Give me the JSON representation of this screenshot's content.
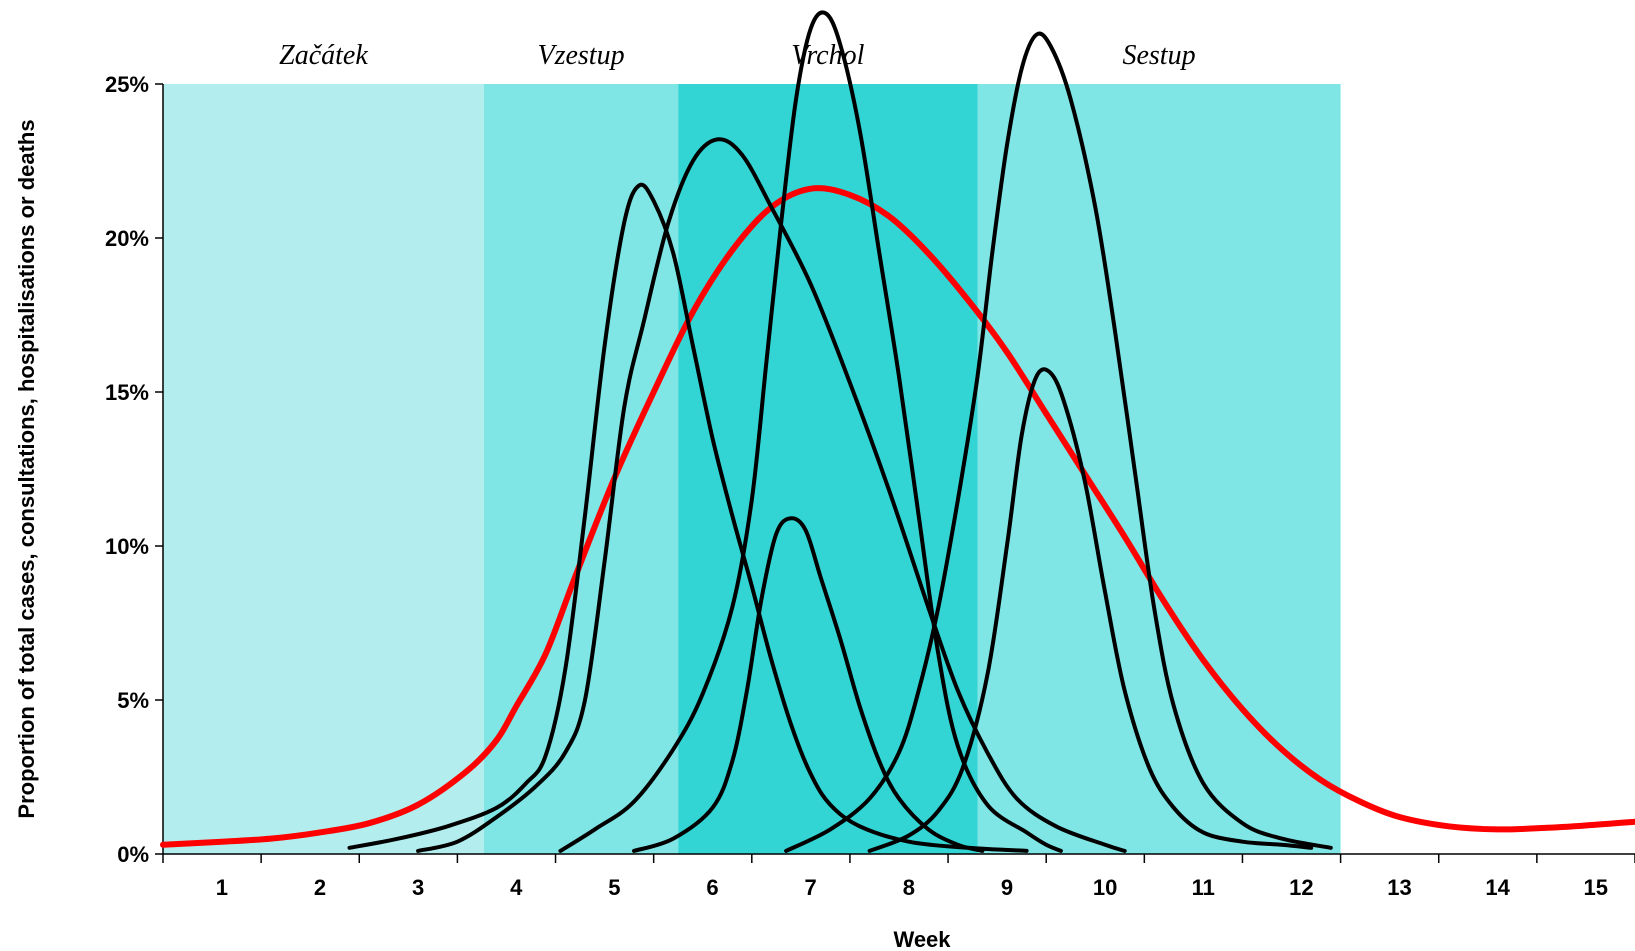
{
  "chart_data": {
    "type": "line",
    "xlabel": "Week",
    "ylabel": "Proportion of total cases, consultations, hospitalisations or deaths",
    "xlim": [
      0.4,
      15.4
    ],
    "ylim": [
      0,
      25
    ],
    "x_ticks": [
      "1",
      "2",
      "3",
      "4",
      "5",
      "6",
      "7",
      "8",
      "9",
      "10",
      "11",
      "12",
      "13",
      "14",
      "15"
    ],
    "y_ticks": [
      {
        "value": 0,
        "label": "0%"
      },
      {
        "value": 5,
        "label": "5%"
      },
      {
        "value": 10,
        "label": "10%"
      },
      {
        "value": 15,
        "label": "15%"
      },
      {
        "value": 20,
        "label": "20%"
      },
      {
        "value": 25,
        "label": "25%"
      }
    ],
    "phases": [
      {
        "label": "Začátek",
        "x_start": 0.4,
        "x_end": 3.67,
        "color": "#b3eded"
      },
      {
        "label": "Vzestup",
        "x_start": 3.67,
        "x_end": 5.65,
        "color": "#80e5e5"
      },
      {
        "label": "Vrchol",
        "x_start": 5.65,
        "x_end": 8.7,
        "color": "#33d4d4"
      },
      {
        "label": "Sestup",
        "x_start": 8.7,
        "x_end": 12.4,
        "color": "#80e5e5"
      }
    ],
    "series": [
      {
        "color": "#ff0000",
        "points": [
          [
            0.4,
            0.3
          ],
          [
            1,
            0.4
          ],
          [
            1.5,
            0.5
          ],
          [
            2,
            0.7
          ],
          [
            2.5,
            1.0
          ],
          [
            3,
            1.6
          ],
          [
            3.5,
            2.7
          ],
          [
            3.8,
            3.7
          ],
          [
            4,
            4.8
          ],
          [
            4.3,
            6.5
          ],
          [
            4.6,
            9.0
          ],
          [
            5,
            12.2
          ],
          [
            5.4,
            15.0
          ],
          [
            5.8,
            17.6
          ],
          [
            6.2,
            19.6
          ],
          [
            6.6,
            21.0
          ],
          [
            7,
            21.6
          ],
          [
            7.4,
            21.4
          ],
          [
            7.8,
            20.7
          ],
          [
            8.2,
            19.5
          ],
          [
            8.6,
            18.0
          ],
          [
            9,
            16.3
          ],
          [
            9.4,
            14.3
          ],
          [
            9.8,
            12.3
          ],
          [
            10.2,
            10.3
          ],
          [
            10.6,
            8.2
          ],
          [
            11,
            6.3
          ],
          [
            11.4,
            4.7
          ],
          [
            11.8,
            3.4
          ],
          [
            12.2,
            2.4
          ],
          [
            12.6,
            1.7
          ],
          [
            13,
            1.2
          ],
          [
            13.5,
            0.9
          ],
          [
            14,
            0.8
          ],
          [
            14.5,
            0.85
          ],
          [
            15,
            0.95
          ],
          [
            15.4,
            1.05
          ]
        ]
      },
      {
        "color": "#000000",
        "points": [
          [
            2.3,
            0.2
          ],
          [
            2.8,
            0.5
          ],
          [
            3.3,
            0.9
          ],
          [
            3.8,
            1.5
          ],
          [
            4.1,
            2.3
          ],
          [
            4.3,
            3.2
          ],
          [
            4.5,
            6.0
          ],
          [
            4.7,
            11.0
          ],
          [
            4.9,
            16.5
          ],
          [
            5.1,
            20.5
          ],
          [
            5.25,
            21.7
          ],
          [
            5.4,
            21.2
          ],
          [
            5.6,
            19.5
          ],
          [
            5.8,
            16.5
          ],
          [
            6.0,
            13.5
          ],
          [
            6.2,
            11.0
          ],
          [
            6.4,
            8.7
          ],
          [
            6.6,
            6.3
          ],
          [
            6.8,
            4.2
          ],
          [
            7.0,
            2.6
          ],
          [
            7.2,
            1.6
          ],
          [
            7.5,
            0.9
          ],
          [
            8.0,
            0.4
          ],
          [
            8.6,
            0.2
          ],
          [
            9.2,
            0.1
          ]
        ]
      },
      {
        "color": "#000000",
        "points": [
          [
            3.0,
            0.1
          ],
          [
            3.4,
            0.4
          ],
          [
            3.8,
            1.2
          ],
          [
            4.2,
            2.2
          ],
          [
            4.5,
            3.3
          ],
          [
            4.7,
            5.0
          ],
          [
            4.9,
            9.5
          ],
          [
            5.1,
            14.5
          ],
          [
            5.3,
            17.3
          ],
          [
            5.55,
            20.5
          ],
          [
            5.8,
            22.5
          ],
          [
            6.05,
            23.2
          ],
          [
            6.3,
            22.7
          ],
          [
            6.6,
            21.0
          ],
          [
            7.0,
            18.5
          ],
          [
            7.4,
            15.3
          ],
          [
            7.8,
            11.8
          ],
          [
            8.2,
            8.0
          ],
          [
            8.5,
            5.3
          ],
          [
            8.8,
            3.3
          ],
          [
            9.1,
            1.8
          ],
          [
            9.5,
            0.9
          ],
          [
            10.0,
            0.3
          ],
          [
            10.2,
            0.1
          ]
        ]
      },
      {
        "color": "#000000",
        "points": [
          [
            4.45,
            0.1
          ],
          [
            4.8,
            0.8
          ],
          [
            5.2,
            1.7
          ],
          [
            5.6,
            3.4
          ],
          [
            5.9,
            5.2
          ],
          [
            6.2,
            8.0
          ],
          [
            6.4,
            11.5
          ],
          [
            6.55,
            16.0
          ],
          [
            6.7,
            20.5
          ],
          [
            6.85,
            24.5
          ],
          [
            7.0,
            26.8
          ],
          [
            7.15,
            27.3
          ],
          [
            7.3,
            26.3
          ],
          [
            7.5,
            23.5
          ],
          [
            7.7,
            19.5
          ],
          [
            7.9,
            15.5
          ],
          [
            8.1,
            11.0
          ],
          [
            8.3,
            6.5
          ],
          [
            8.5,
            3.5
          ],
          [
            8.8,
            1.6
          ],
          [
            9.2,
            0.7
          ],
          [
            9.4,
            0.3
          ],
          [
            9.55,
            0.1
          ]
        ]
      },
      {
        "color": "#000000",
        "points": [
          [
            5.2,
            0.1
          ],
          [
            5.6,
            0.5
          ],
          [
            6.0,
            1.5
          ],
          [
            6.2,
            3.0
          ],
          [
            6.35,
            5.3
          ],
          [
            6.5,
            8.3
          ],
          [
            6.65,
            10.4
          ],
          [
            6.8,
            10.9
          ],
          [
            6.95,
            10.5
          ],
          [
            7.1,
            9.0
          ],
          [
            7.3,
            7.0
          ],
          [
            7.5,
            4.8
          ],
          [
            7.7,
            3.0
          ],
          [
            7.9,
            1.8
          ],
          [
            8.2,
            0.8
          ],
          [
            8.5,
            0.3
          ],
          [
            8.75,
            0.1
          ]
        ]
      },
      {
        "color": "#000000",
        "points": [
          [
            6.75,
            0.1
          ],
          [
            7.2,
            0.8
          ],
          [
            7.6,
            1.8
          ],
          [
            7.9,
            3.3
          ],
          [
            8.1,
            5.3
          ],
          [
            8.3,
            8.0
          ],
          [
            8.5,
            11.5
          ],
          [
            8.7,
            15.5
          ],
          [
            8.85,
            19.5
          ],
          [
            9.0,
            23.0
          ],
          [
            9.15,
            25.5
          ],
          [
            9.3,
            26.6
          ],
          [
            9.45,
            26.2
          ],
          [
            9.65,
            24.5
          ],
          [
            9.9,
            21.0
          ],
          [
            10.1,
            17.0
          ],
          [
            10.3,
            12.5
          ],
          [
            10.5,
            8.0
          ],
          [
            10.7,
            4.8
          ],
          [
            11.0,
            2.3
          ],
          [
            11.4,
            1.0
          ],
          [
            11.8,
            0.5
          ],
          [
            12.3,
            0.2
          ]
        ]
      },
      {
        "color": "#000000",
        "points": [
          [
            7.6,
            0.1
          ],
          [
            8.0,
            0.6
          ],
          [
            8.3,
            1.4
          ],
          [
            8.55,
            2.8
          ],
          [
            8.8,
            5.8
          ],
          [
            9.0,
            10.0
          ],
          [
            9.15,
            13.6
          ],
          [
            9.3,
            15.5
          ],
          [
            9.45,
            15.6
          ],
          [
            9.6,
            14.5
          ],
          [
            9.8,
            12.0
          ],
          [
            10.0,
            8.5
          ],
          [
            10.2,
            5.3
          ],
          [
            10.45,
            2.8
          ],
          [
            10.7,
            1.5
          ],
          [
            11.0,
            0.7
          ],
          [
            11.4,
            0.4
          ],
          [
            11.8,
            0.3
          ],
          [
            12.1,
            0.2
          ]
        ]
      }
    ]
  }
}
